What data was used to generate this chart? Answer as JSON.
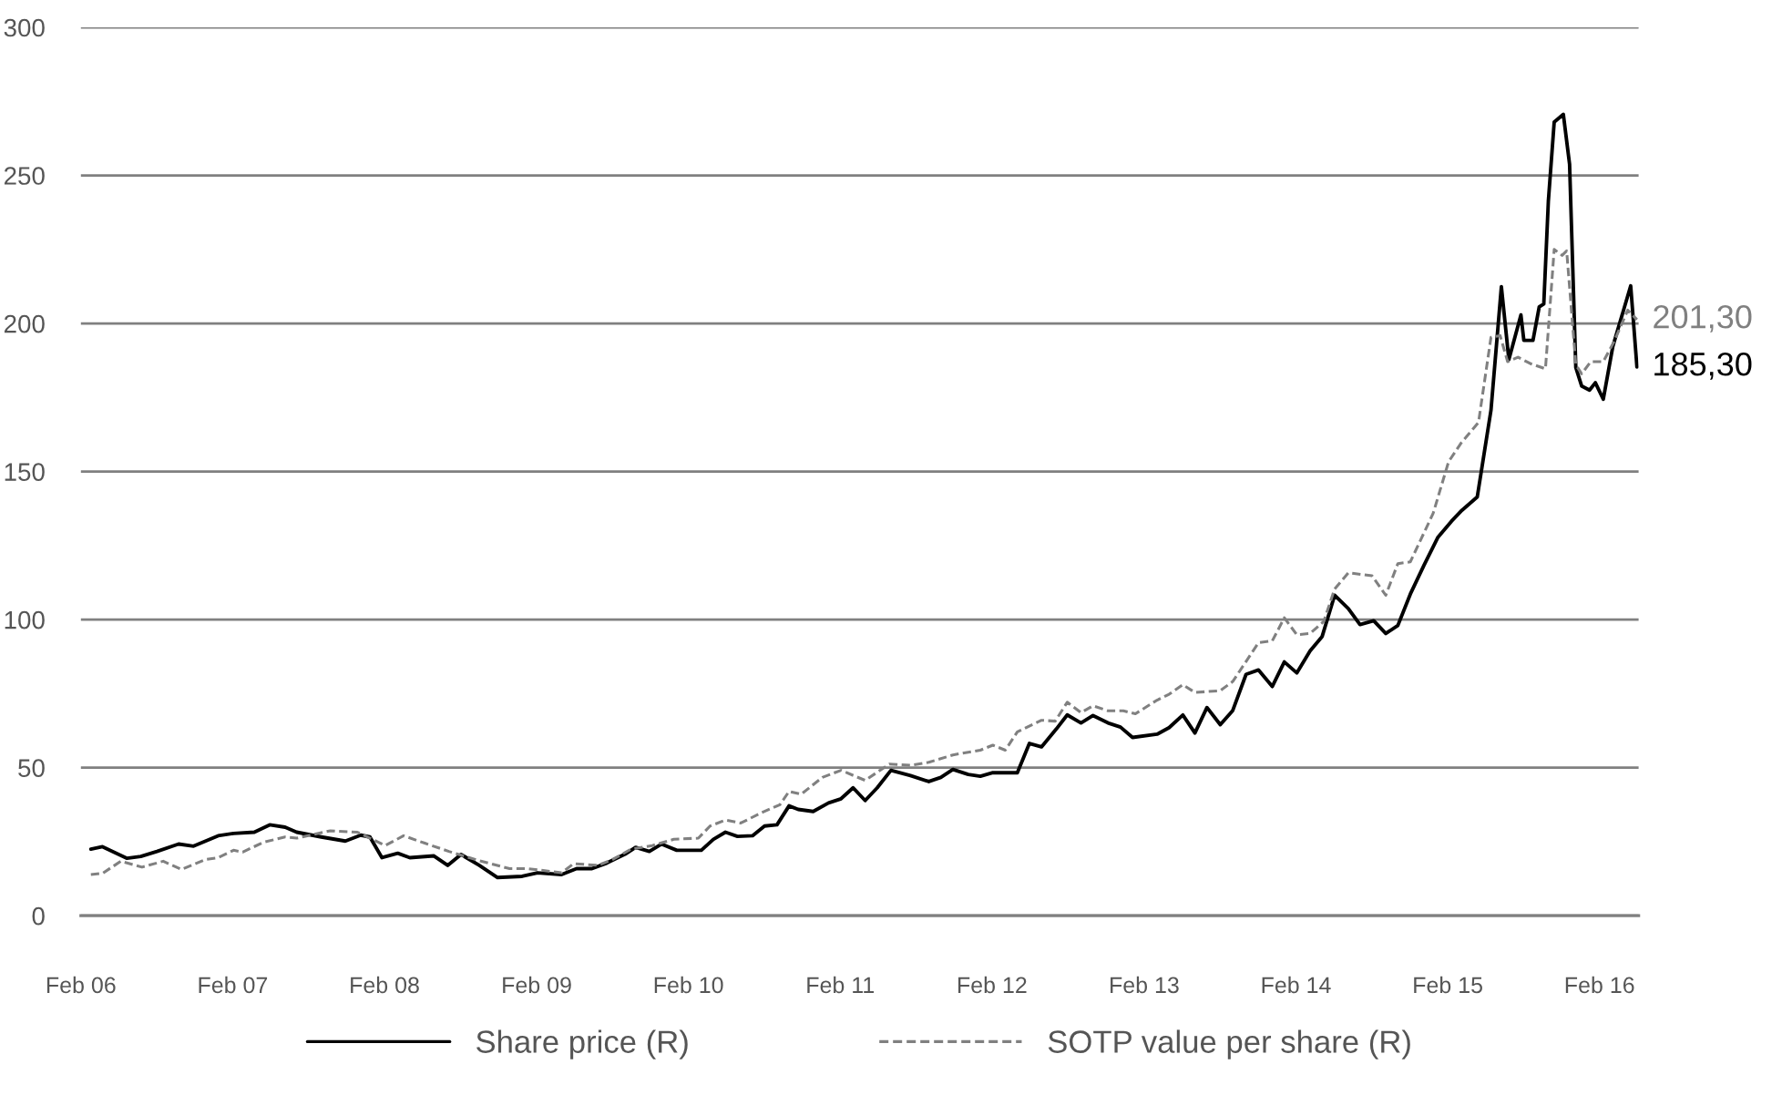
{
  "chart_data": {
    "type": "line",
    "xlim": [
      "2006-02-01",
      "2016-05-05"
    ],
    "xticks": [
      {
        "value": "2006-02-01",
        "label": "Feb 06"
      },
      {
        "value": "2007-02-01",
        "label": "Feb 07"
      },
      {
        "value": "2008-02-01",
        "label": "Feb 08"
      },
      {
        "value": "2009-02-01",
        "label": "Feb 09"
      },
      {
        "value": "2010-02-01",
        "label": "Feb 10"
      },
      {
        "value": "2011-02-01",
        "label": "Feb 11"
      },
      {
        "value": "2012-02-01",
        "label": "Feb 12"
      },
      {
        "value": "2013-02-01",
        "label": "Feb 13"
      },
      {
        "value": "2014-02-01",
        "label": "Feb 14"
      },
      {
        "value": "2015-02-01",
        "label": "Feb 15"
      },
      {
        "value": "2016-02-01",
        "label": "Feb 16"
      }
    ],
    "ylim": [
      0,
      300
    ],
    "yticks": [
      0,
      50,
      100,
      150,
      200,
      250,
      300
    ],
    "grid": "y",
    "legend": "bottom",
    "series": [
      {
        "name": "Share price (R)",
        "color": "#000000",
        "line_style": "solid",
        "x": [
          "2006-02-25",
          "2006-03-25",
          "2006-05-23",
          "2006-06-25",
          "2006-08-03",
          "2006-09-24",
          "2006-10-30",
          "2006-12-28",
          "2007-02-03",
          "2007-03-25",
          "2007-05-01",
          "2007-06-07",
          "2007-07-05",
          "2007-09-02",
          "2007-10-30",
          "2007-12-06",
          "2007-12-28",
          "2008-01-26",
          "2008-03-04",
          "2008-04-02",
          "2008-05-30",
          "2008-07-02",
          "2008-08-03",
          "2008-09-16",
          "2008-10-30",
          "2008-12-28",
          "2009-02-03",
          "2009-04-02",
          "2009-05-08",
          "2009-06-14",
          "2009-07-20",
          "2009-09-02",
          "2009-09-27",
          "2009-10-30",
          "2009-11-28",
          "2010-01-04",
          "2010-03-04",
          "2010-04-02",
          "2010-05-01",
          "2010-05-30",
          "2010-07-05",
          "2010-08-03",
          "2010-09-02",
          "2010-10-01",
          "2010-10-23",
          "2010-11-28",
          "2011-01-04",
          "2011-02-03",
          "2011-03-04",
          "2011-04-02",
          "2011-05-01",
          "2011-06-03",
          "2011-07-20",
          "2011-09-02",
          "2011-10-01",
          "2011-10-30",
          "2011-12-06",
          "2012-01-04",
          "2012-02-03",
          "2012-04-02",
          "2012-05-01",
          "2012-05-30",
          "2012-07-05",
          "2012-07-31",
          "2012-09-02",
          "2012-10-01",
          "2012-11-06",
          "2012-12-06",
          "2013-01-04",
          "2013-03-04",
          "2013-04-02",
          "2013-05-05",
          "2013-06-03",
          "2013-07-02",
          "2013-08-03",
          "2013-09-02",
          "2013-10-04",
          "2013-11-03",
          "2013-12-06",
          "2014-01-04",
          "2014-02-03",
          "2014-03-07",
          "2014-04-05",
          "2014-05-05",
          "2014-06-07",
          "2014-07-05",
          "2014-08-07",
          "2014-09-05",
          "2014-10-04",
          "2014-11-03",
          "2014-12-06",
          "2015-01-08",
          "2015-02-10",
          "2015-03-07",
          "2015-04-13",
          "2015-05-16",
          "2015-06-10",
          "2015-06-28",
          "2015-07-27",
          "2015-08-03",
          "2015-08-25",
          "2015-09-09",
          "2015-09-20",
          "2015-10-01",
          "2015-10-15",
          "2015-11-06",
          "2015-11-21",
          "2015-12-06",
          "2015-12-20",
          "2016-01-08",
          "2016-01-22",
          "2016-02-10",
          "2016-03-04",
          "2016-04-16",
          "2016-05-01"
        ],
        "values": [
          22.5,
          23.3,
          19.4,
          20,
          21.7,
          24.2,
          23.5,
          27,
          27.8,
          28.2,
          30.7,
          29.9,
          28.2,
          26.6,
          25.2,
          27.2,
          26.6,
          19.6,
          21.1,
          19.6,
          20.2,
          17,
          20.7,
          17,
          12.9,
          13.3,
          14.5,
          13.9,
          15.9,
          15.9,
          17.8,
          20.8,
          23.1,
          21.7,
          24.2,
          22.1,
          22.1,
          25.8,
          28.2,
          26.8,
          27,
          30.3,
          30.7,
          37.1,
          35.9,
          35.2,
          38.1,
          39.5,
          43.2,
          38.9,
          43.2,
          49.1,
          47.3,
          45.3,
          46.7,
          49.4,
          47.7,
          47.1,
          48.3,
          48.3,
          58.2,
          57,
          63.1,
          67.8,
          65.1,
          67.6,
          65.1,
          63.7,
          60.2,
          61.3,
          63.5,
          67.8,
          61.7,
          70.3,
          64.5,
          69.3,
          81.5,
          83,
          77.4,
          85.7,
          82,
          89.4,
          94.3,
          108.2,
          103.7,
          98.3,
          99.6,
          95.3,
          98,
          108.6,
          118.4,
          127.7,
          133.2,
          136.9,
          141.4,
          170.7,
          212.4,
          187.8,
          202.9,
          194.3,
          194.3,
          205.6,
          206.6,
          241.4,
          268,
          270.6,
          253.8,
          185.1,
          178.9,
          177.5,
          180,
          174.4,
          192.2,
          212.7,
          185.3
        ]
      },
      {
        "name": "SOTP value per share (R)",
        "color": "#808080",
        "line_style": "dashed",
        "x": [
          "2006-02-25",
          "2006-03-25",
          "2006-05-08",
          "2006-06-28",
          "2006-08-18",
          "2006-10-01",
          "2006-11-28",
          "2006-12-28",
          "2007-02-03",
          "2007-02-25",
          "2007-04-16",
          "2007-06-07",
          "2007-07-05",
          "2007-09-24",
          "2007-11-28",
          "2007-12-28",
          "2008-02-03",
          "2008-03-18",
          "2008-05-08",
          "2008-07-05",
          "2008-09-16",
          "2008-11-28",
          "2009-01-11",
          "2009-04-02",
          "2009-05-01",
          "2009-06-28",
          "2009-08-03",
          "2009-09-16",
          "2009-11-06",
          "2009-12-28",
          "2010-02-25",
          "2010-03-25",
          "2010-05-01",
          "2010-06-07",
          "2010-07-27",
          "2010-09-09",
          "2010-10-01",
          "2010-10-30",
          "2010-12-20",
          "2011-02-03",
          "2011-04-02",
          "2011-05-30",
          "2011-07-20",
          "2011-09-02",
          "2011-10-30",
          "2012-01-04",
          "2012-02-03",
          "2012-03-04",
          "2012-04-02",
          "2012-05-30",
          "2012-07-02",
          "2012-07-31",
          "2012-09-02",
          "2012-10-01",
          "2012-11-06",
          "2012-12-13",
          "2013-01-11",
          "2013-03-04",
          "2013-04-02",
          "2013-05-05",
          "2013-06-03",
          "2013-08-03",
          "2013-09-02",
          "2013-11-03",
          "2013-12-06",
          "2014-01-04",
          "2014-02-03",
          "2014-03-07",
          "2014-04-09",
          "2014-05-05",
          "2014-06-07",
          "2014-08-03",
          "2014-09-05",
          "2014-10-04",
          "2014-11-03",
          "2014-12-28",
          "2015-02-03",
          "2015-03-04",
          "2015-04-16",
          "2015-05-16",
          "2015-06-07",
          "2015-06-25",
          "2015-07-20",
          "2015-08-18",
          "2015-09-24",
          "2015-10-15",
          "2015-11-03",
          "2015-11-14",
          "2015-12-06",
          "2015-12-20",
          "2016-01-11",
          "2016-02-10",
          "2016-03-07",
          "2016-04-09",
          "2016-05-01"
        ],
        "values": [
          13.9,
          14.3,
          18.4,
          16.4,
          18.4,
          15.6,
          19,
          19.6,
          22.1,
          21.5,
          24.8,
          26.6,
          26.2,
          28.7,
          28.2,
          26.2,
          23.7,
          27,
          24.5,
          21.7,
          18.6,
          15.9,
          15.9,
          14.5,
          17.6,
          17,
          19,
          22.5,
          23.7,
          25.8,
          26.2,
          30.3,
          32.3,
          31.3,
          34.8,
          37.5,
          42,
          41,
          46.7,
          49.1,
          45.7,
          51.2,
          50.8,
          51.8,
          54.3,
          55.9,
          57.6,
          55.9,
          62.1,
          66,
          65.7,
          72.1,
          68.6,
          70.9,
          69.2,
          69.2,
          68.2,
          72.8,
          74.8,
          78,
          75.4,
          76,
          79.1,
          92.2,
          92.8,
          100.6,
          94.9,
          95.3,
          99.4,
          110.3,
          115.8,
          114.8,
          108.2,
          118.9,
          119.5,
          135.9,
          153.3,
          159.4,
          166.6,
          195.3,
          195.9,
          187.1,
          188.6,
          186.5,
          184.7,
          225,
          223,
          224.5,
          186.1,
          183,
          187.1,
          187.1,
          193.9,
          204.5,
          201.3
        ]
      }
    ],
    "annotations": [
      {
        "text": "185,30",
        "x": "2016-05-01",
        "y": 185.3
      },
      {
        "text": "201,30",
        "x": "2016-05-01",
        "y": 201.3
      }
    ]
  }
}
